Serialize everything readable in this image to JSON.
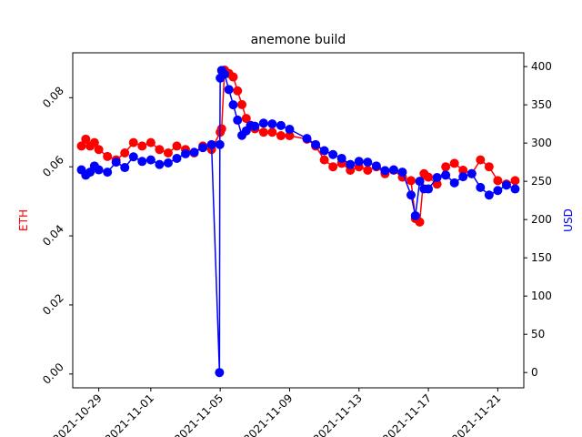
{
  "chart_data": {
    "type": "line",
    "title": "anemone build",
    "xlabel": "",
    "x_tick_labels": [
      "2021-10-29",
      "2021-11-01",
      "2021-11-05",
      "2021-11-09",
      "2021-11-13",
      "2021-11-17",
      "2021-11-21"
    ],
    "x_range": [
      "2021-10-27T12:00",
      "2021-11-22T12:00"
    ],
    "grid": false,
    "legend": "none",
    "left_axis": {
      "label": "ETH",
      "color": "#ff0000",
      "ylim": [
        -0.004,
        0.093
      ],
      "ticks": [
        0.0,
        0.02,
        0.04,
        0.06,
        0.08
      ],
      "tick_labels": [
        "0.00",
        "0.02",
        "0.04",
        "0.06",
        "0.08"
      ]
    },
    "right_axis": {
      "label": "USD",
      "color": "#0000ff",
      "ylim": [
        -20,
        418
      ],
      "ticks": [
        0,
        50,
        100,
        150,
        200,
        250,
        300,
        350,
        400
      ],
      "tick_labels": [
        "0",
        "50",
        "100",
        "150",
        "200",
        "250",
        "300",
        "350",
        "400"
      ]
    },
    "series": [
      {
        "axis": "left",
        "color": "#ff0000",
        "x": [
          "2021-10-28T00:00",
          "2021-10-28T06:00",
          "2021-10-28T12:00",
          "2021-10-28T18:00",
          "2021-10-29T00:00",
          "2021-10-29T12:00",
          "2021-10-30T00:00",
          "2021-10-30T12:00",
          "2021-10-31T00:00",
          "2021-10-31T12:00",
          "2021-11-01T00:00",
          "2021-11-01T12:00",
          "2021-11-02T00:00",
          "2021-11-02T12:00",
          "2021-11-03T00:00",
          "2021-11-03T12:00",
          "2021-11-04T00:00",
          "2021-11-04T12:00",
          "2021-11-05T00:00",
          "2021-11-05T02:00",
          "2021-11-05T06:00",
          "2021-11-05T12:00",
          "2021-11-05T18:00",
          "2021-11-06T00:00",
          "2021-11-06T06:00",
          "2021-11-06T12:00",
          "2021-11-06T18:00",
          "2021-11-07T00:00",
          "2021-11-07T12:00",
          "2021-11-08T00:00",
          "2021-11-08T12:00",
          "2021-11-09T00:00",
          "2021-11-10T00:00",
          "2021-11-10T12:00",
          "2021-11-11T00:00",
          "2021-11-11T12:00",
          "2021-11-12T00:00",
          "2021-11-12T12:00",
          "2021-11-13T00:00",
          "2021-11-13T12:00",
          "2021-11-14T00:00",
          "2021-11-14T12:00",
          "2021-11-15T00:00",
          "2021-11-15T12:00",
          "2021-11-16T00:00",
          "2021-11-16T06:00",
          "2021-11-16T12:00",
          "2021-11-16T18:00",
          "2021-11-17T00:00",
          "2021-11-17T12:00",
          "2021-11-18T00:00",
          "2021-11-18T12:00",
          "2021-11-19T00:00",
          "2021-11-19T12:00",
          "2021-11-20T00:00",
          "2021-11-20T12:00",
          "2021-11-21T00:00",
          "2021-11-21T12:00",
          "2021-11-22T00:00"
        ],
        "values": [
          0.066,
          0.068,
          0.066,
          0.067,
          0.065,
          0.063,
          0.062,
          0.064,
          0.067,
          0.066,
          0.067,
          0.065,
          0.064,
          0.066,
          0.065,
          0.064,
          0.066,
          0.065,
          0.07,
          0.071,
          0.088,
          0.087,
          0.086,
          0.082,
          0.078,
          0.074,
          0.072,
          0.071,
          0.07,
          0.07,
          0.069,
          0.069,
          0.068,
          0.066,
          0.062,
          0.06,
          0.061,
          0.059,
          0.06,
          0.059,
          0.06,
          0.058,
          0.059,
          0.057,
          0.056,
          0.045,
          0.044,
          0.058,
          0.057,
          0.055,
          0.06,
          0.061,
          0.059,
          0.058,
          0.062,
          0.06,
          0.056,
          0.055,
          0.056
        ]
      },
      {
        "axis": "right",
        "color": "#0000ff",
        "x": [
          "2021-10-28T00:00",
          "2021-10-28T06:00",
          "2021-10-28T12:00",
          "2021-10-28T18:00",
          "2021-10-29T00:00",
          "2021-10-29T12:00",
          "2021-10-30T00:00",
          "2021-10-30T12:00",
          "2021-10-31T00:00",
          "2021-10-31T12:00",
          "2021-11-01T00:00",
          "2021-11-01T12:00",
          "2021-11-02T00:00",
          "2021-11-02T12:00",
          "2021-11-03T00:00",
          "2021-11-03T12:00",
          "2021-11-04T00:00",
          "2021-11-04T12:00",
          "2021-11-04T23:00",
          "2021-11-04T23:30",
          "2021-11-05T00:00",
          "2021-11-05T02:00",
          "2021-11-05T06:00",
          "2021-11-05T12:00",
          "2021-11-05T18:00",
          "2021-11-06T00:00",
          "2021-11-06T06:00",
          "2021-11-06T12:00",
          "2021-11-06T18:00",
          "2021-11-07T00:00",
          "2021-11-07T12:00",
          "2021-11-08T00:00",
          "2021-11-08T12:00",
          "2021-11-09T00:00",
          "2021-11-10T00:00",
          "2021-11-10T12:00",
          "2021-11-11T00:00",
          "2021-11-11T12:00",
          "2021-11-12T00:00",
          "2021-11-12T12:00",
          "2021-11-13T00:00",
          "2021-11-13T12:00",
          "2021-11-14T00:00",
          "2021-11-14T12:00",
          "2021-11-15T00:00",
          "2021-11-15T12:00",
          "2021-11-16T00:00",
          "2021-11-16T06:00",
          "2021-11-16T12:00",
          "2021-11-16T18:00",
          "2021-11-17T00:00",
          "2021-11-17T12:00",
          "2021-11-18T00:00",
          "2021-11-18T12:00",
          "2021-11-19T00:00",
          "2021-11-19T12:00",
          "2021-11-20T00:00",
          "2021-11-20T12:00",
          "2021-11-21T00:00",
          "2021-11-21T12:00",
          "2021-11-22T00:00"
        ],
        "values": [
          265,
          258,
          262,
          270,
          265,
          262,
          275,
          268,
          282,
          276,
          278,
          272,
          274,
          280,
          286,
          288,
          294,
          298,
          0,
          298,
          385,
          395,
          390,
          370,
          350,
          330,
          310,
          316,
          323,
          322,
          326,
          325,
          323,
          318,
          306,
          298,
          290,
          285,
          280,
          272,
          276,
          275,
          270,
          264,
          265,
          262,
          232,
          205,
          250,
          240,
          240,
          255,
          258,
          248,
          256,
          260,
          242,
          232,
          238,
          245,
          240
        ]
      }
    ]
  }
}
